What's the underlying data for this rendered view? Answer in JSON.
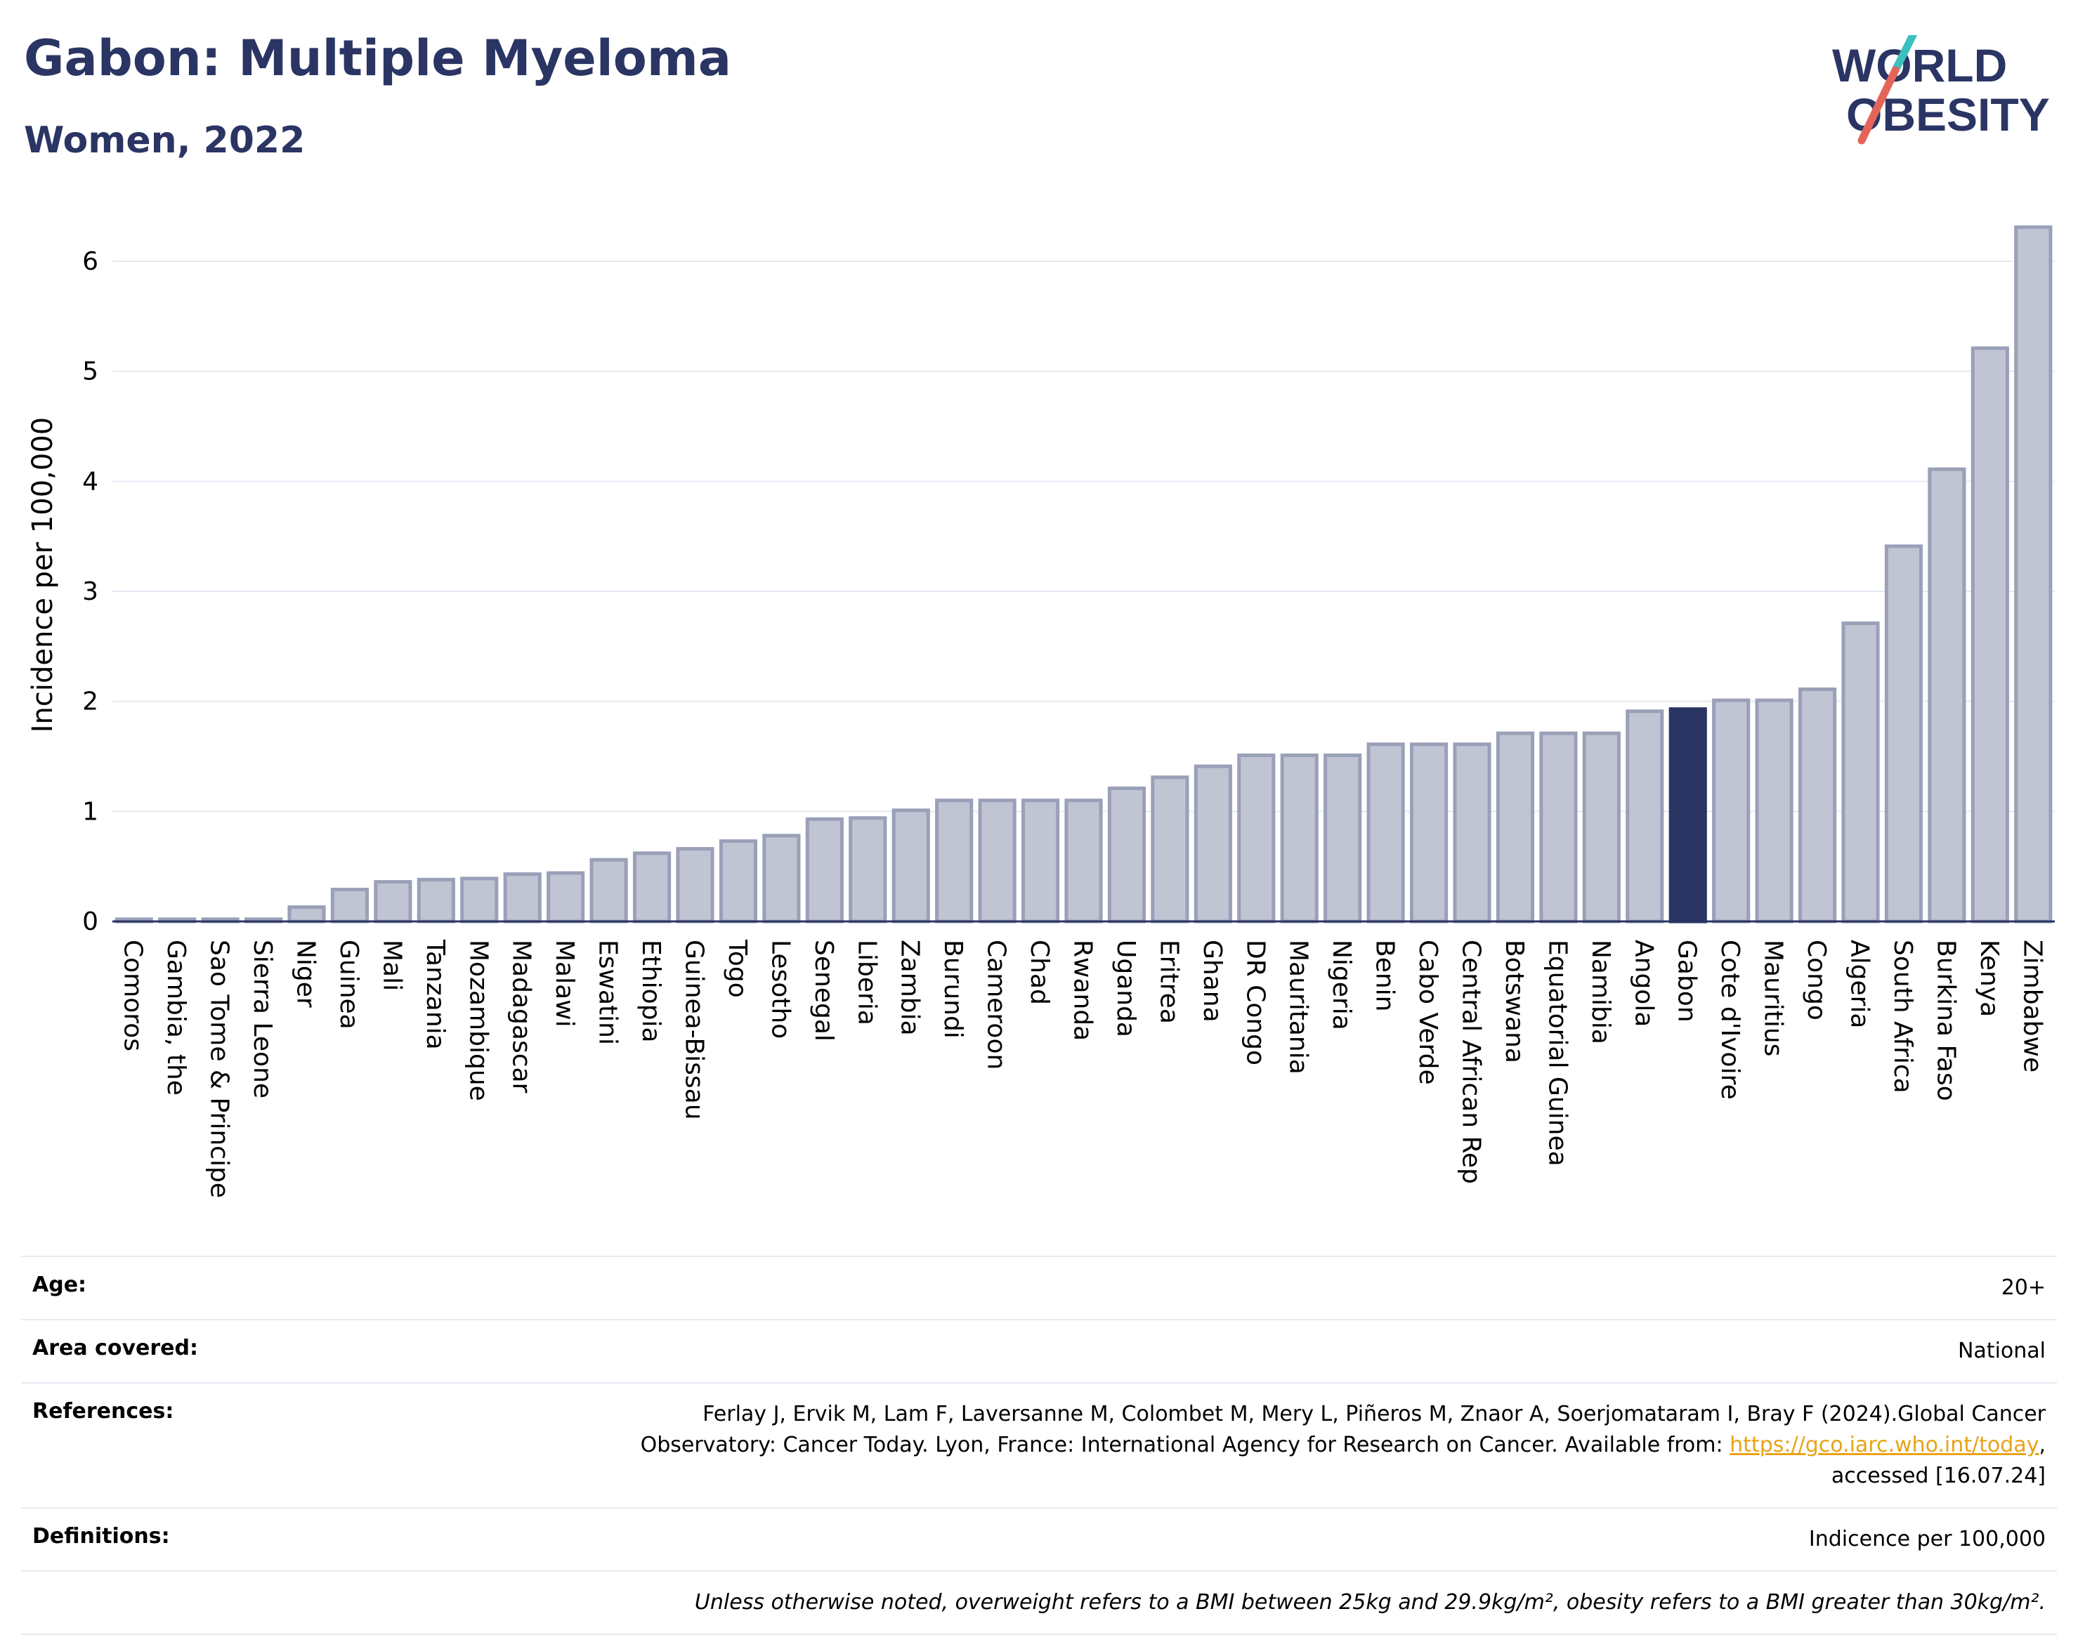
{
  "header": {
    "title": "Gabon: Multiple Myeloma",
    "subtitle": "Women, 2022"
  },
  "logo": {
    "line1": "WORLD",
    "line2": "OBESITY",
    "colors": {
      "text": "#2b3564",
      "slash_teal": "#3bbfbf",
      "slash_red": "#e4645a"
    }
  },
  "colors": {
    "bar_fill": "#c0c4d3",
    "bar_stroke": "#9aa0b8",
    "highlight": "#2b3564",
    "grid": "#e6e9f2",
    "axis_text": "#000000"
  },
  "chart_data": {
    "type": "bar",
    "title": "Gabon: Multiple Myeloma",
    "subtitle": "Women, 2022",
    "xlabel": "",
    "ylabel": "Incidence per 100,000",
    "ylim": [
      0,
      6.3
    ],
    "yticks": [
      0,
      1,
      2,
      3,
      4,
      5,
      6
    ],
    "grid": true,
    "highlight": "Gabon",
    "categories": [
      "Comoros",
      "Gambia, the",
      "Sao Tome & Principe",
      "Sierra Leone",
      "Niger",
      "Guinea",
      "Mali",
      "Tanzania",
      "Mozambique",
      "Madagascar",
      "Malawi",
      "Eswatini",
      "Ethiopia",
      "Guinea-Bissau",
      "Togo",
      "Lesotho",
      "Senegal",
      "Liberia",
      "Zambia",
      "Burundi",
      "Cameroon",
      "Chad",
      "Rwanda",
      "Uganda",
      "Eritrea",
      "Ghana",
      "DR Congo",
      "Mauritania",
      "Nigeria",
      "Benin",
      "Cabo Verde",
      "Central African Rep",
      "Botswana",
      "Equatorial Guinea",
      "Namibia",
      "Angola",
      "Gabon",
      "Cote d'Ivoire",
      "Mauritius",
      "Congo",
      "Algeria",
      "South Africa",
      "Burkina Faso",
      "Kenya",
      "Zimbabwe"
    ],
    "values": [
      0.02,
      0.02,
      0.02,
      0.02,
      0.13,
      0.29,
      0.36,
      0.38,
      0.39,
      0.43,
      0.44,
      0.56,
      0.62,
      0.66,
      0.73,
      0.78,
      0.93,
      0.94,
      1.01,
      1.1,
      1.1,
      1.1,
      1.1,
      1.21,
      1.31,
      1.41,
      1.51,
      1.51,
      1.51,
      1.61,
      1.61,
      1.61,
      1.71,
      1.71,
      1.71,
      1.91,
      1.93,
      2.01,
      2.01,
      2.11,
      2.71,
      3.41,
      4.11,
      5.21,
      6.31
    ]
  },
  "meta": {
    "age_label": "Age:",
    "age_value": "20+",
    "area_label": "Area covered:",
    "area_value": "National",
    "references_label": "References:",
    "references_line1": "Ferlay J, Ervik M, Lam F, Laversanne M, Colombet M, Mery L, Piñeros M, Znaor A, Soerjomataram I, Bray F (2024).Global Cancer",
    "references_line2_pre": "Observatory: Cancer Today. Lyon, France: International Agency for Research on Cancer. Available from: ",
    "references_link": "https://gco.iarc.who.int/today",
    "references_line2_post": ",",
    "references_line3": "accessed [16.07.24]",
    "definitions_label": "Definitions:",
    "definitions_value": "Indicence per 100,000",
    "note": "Unless otherwise noted, overweight refers to a BMI between 25kg and 29.9kg/m², obesity refers to a BMI greater than 30kg/m²."
  }
}
